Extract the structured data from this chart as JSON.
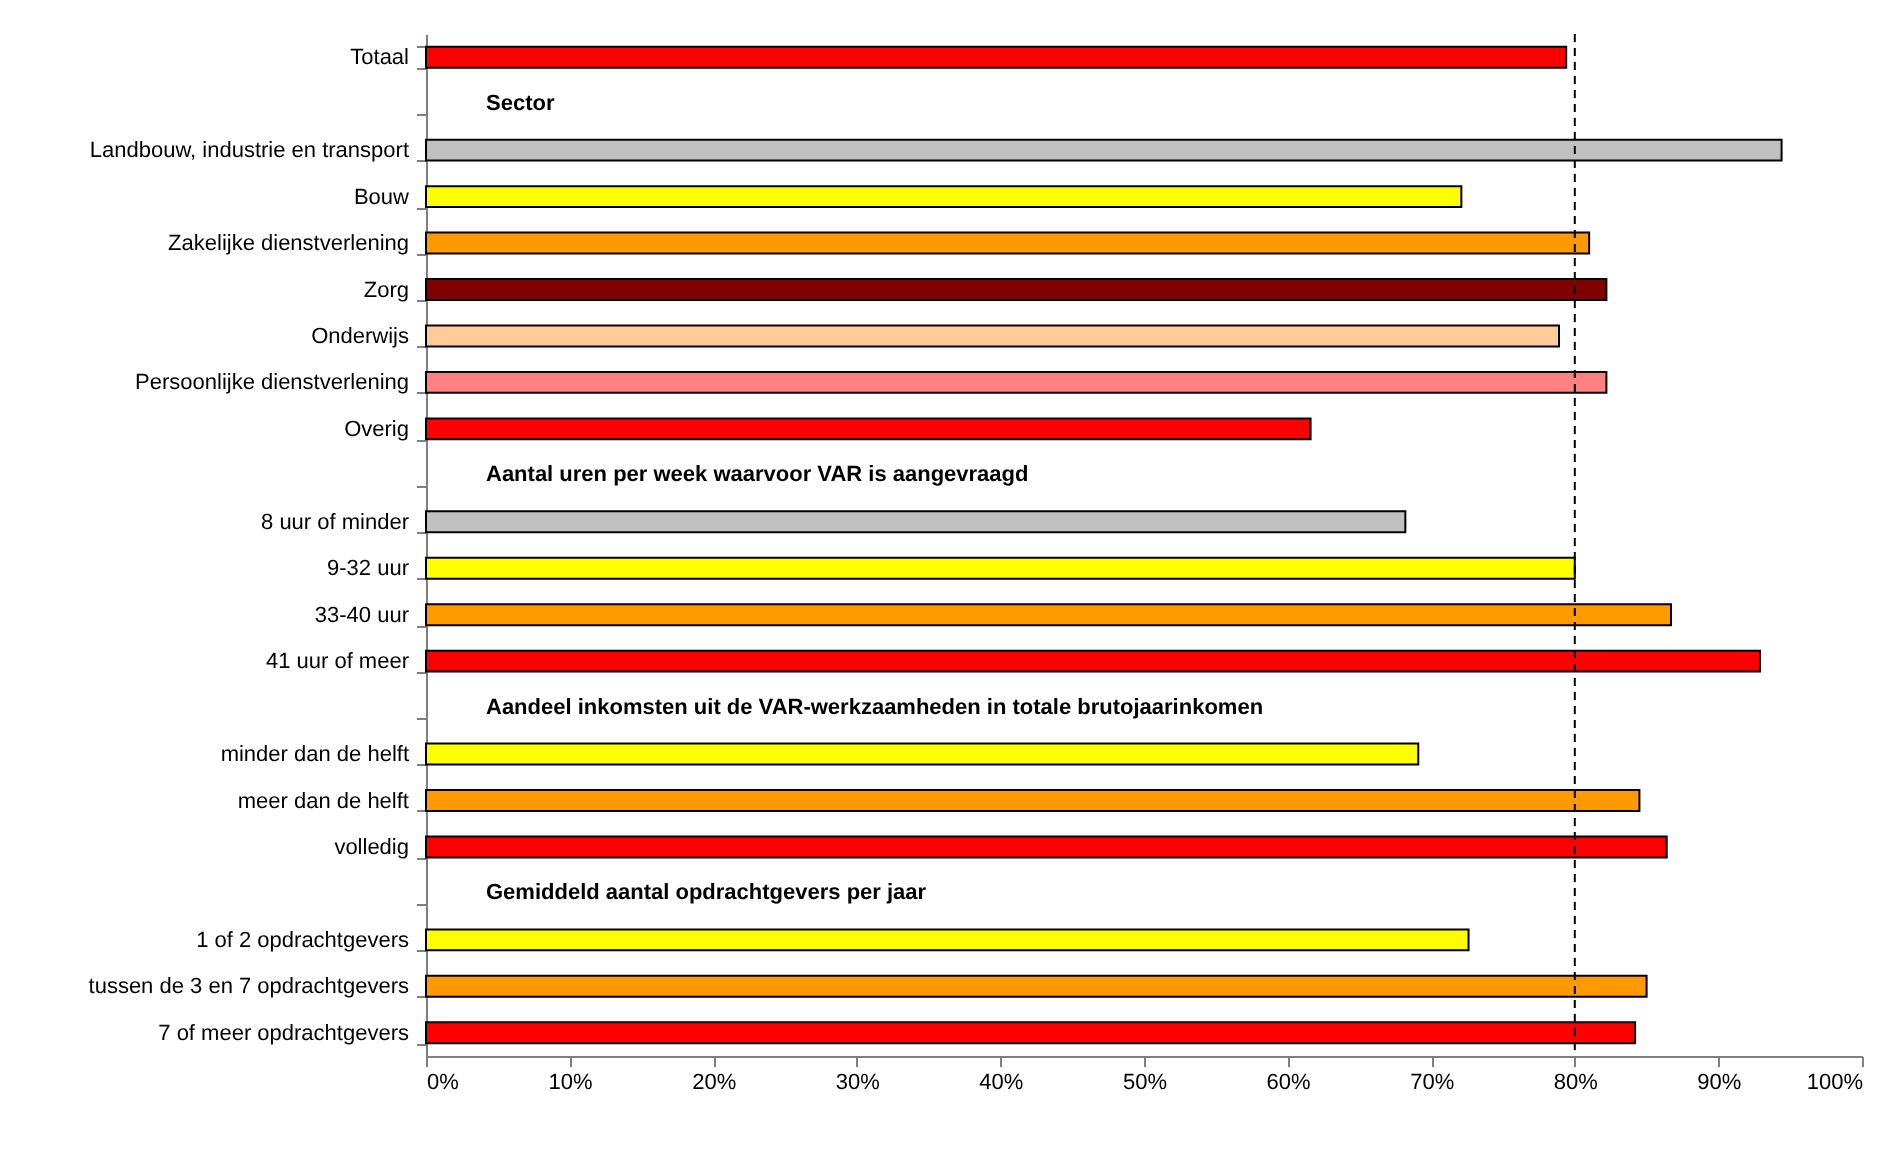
{
  "chart_data": {
    "type": "bar",
    "orientation": "horizontal",
    "categories": [
      "Totaal",
      null,
      "Landbouw, industrie en transport",
      "Bouw",
      "Zakelijke dienstverlening",
      "Zorg",
      "Onderwijs",
      "Persoonlijke dienstverlening",
      "Overig",
      null,
      "8 uur of minder",
      "9-32 uur",
      "33-40 uur",
      "41 uur of meer",
      null,
      "minder dan de helft",
      "meer dan de helft",
      "volledig",
      null,
      "1 of 2 opdrachtgevers",
      "tussen de 3 en 7 opdrachtgevers",
      "7 of meer opdrachtgevers"
    ],
    "values": [
      79.4,
      null,
      94.4,
      72.1,
      81.0,
      82.2,
      78.9,
      82.2,
      61.6,
      null,
      68.2,
      80.0,
      86.7,
      92.9,
      null,
      69.1,
      84.5,
      86.4,
      null,
      72.6,
      85.0,
      84.2
    ],
    "colors": [
      "#ff0000",
      null,
      "#c0c0c0",
      "#ffff00",
      "#ff9900",
      "#800000",
      "#ffcc99",
      "#ff8080",
      "#ff0000",
      null,
      "#c0c0c0",
      "#ffff00",
      "#ff9900",
      "#ff0000",
      null,
      "#ffff00",
      "#ff9900",
      "#ff0000",
      null,
      "#ffff00",
      "#ff9900",
      "#ff0000"
    ],
    "annotations": [
      "Sector",
      "Aantal uren per week waarvoor VAR is aangevraagd",
      "Aandeel inkomsten uit de VAR-werkzaamheden in totale brutojaarinkomen",
      "Gemiddeld aantal opdrachtgevers per jaar"
    ],
    "xlim": [
      0,
      100
    ],
    "xticks": [
      {
        "value": 0,
        "label": "0%"
      },
      {
        "value": 10,
        "label": "10%"
      },
      {
        "value": 20,
        "label": "20%"
      },
      {
        "value": 30,
        "label": "30%"
      },
      {
        "value": 40,
        "label": "40%"
      },
      {
        "value": 50,
        "label": "50%"
      },
      {
        "value": 60,
        "label": "60%"
      },
      {
        "value": 70,
        "label": "70%"
      },
      {
        "value": 80,
        "label": "80%"
      },
      {
        "value": 90,
        "label": "90%"
      },
      {
        "value": 100,
        "label": "100%"
      }
    ],
    "ref_lines": [
      {
        "axis": "x",
        "value": 80,
        "line_style": "dashed",
        "color": "#000000"
      }
    ]
  }
}
